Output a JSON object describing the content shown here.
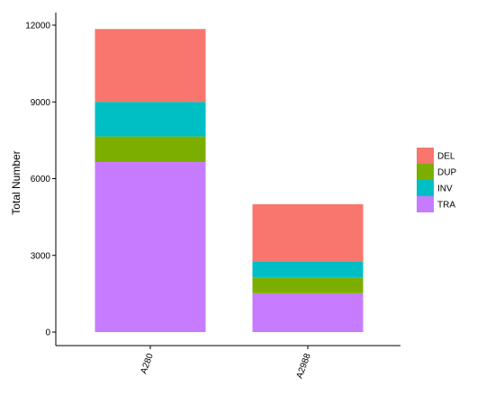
{
  "chart_data": {
    "type": "bar",
    "stacked": true,
    "categories": [
      "A280",
      "A2988"
    ],
    "series": [
      {
        "name": "TRA",
        "values": [
          6650,
          1520
        ],
        "color": "#C77CFF"
      },
      {
        "name": "DUP",
        "values": [
          1000,
          600
        ],
        "color": "#7CAE00"
      },
      {
        "name": "INV",
        "values": [
          1350,
          650
        ],
        "color": "#00BFC4"
      },
      {
        "name": "DEL",
        "values": [
          2850,
          2230
        ],
        "color": "#F8766D"
      }
    ],
    "legend_order": [
      "DEL",
      "DUP",
      "INV",
      "TRA"
    ],
    "legend_position": "right",
    "ylabel": "Total Number",
    "xlabel": "",
    "ylim": [
      0,
      12500
    ],
    "yticks": [
      0,
      3000,
      6000,
      9000,
      12000
    ],
    "ytick_labels": [
      "0",
      "3000",
      "6000",
      "9000",
      "12000"
    ],
    "xtick_rotation_deg": -70,
    "grid": false
  }
}
